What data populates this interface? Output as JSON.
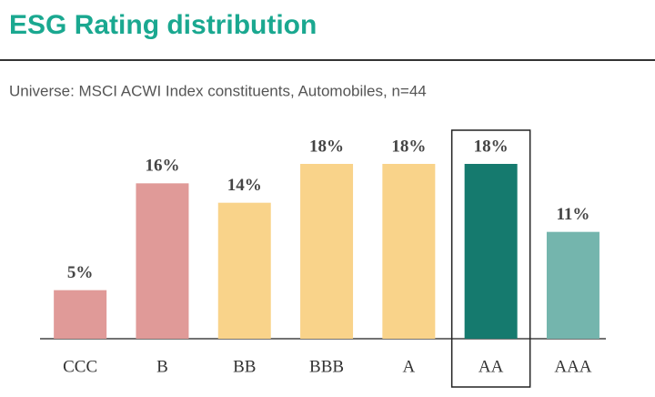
{
  "title": "ESG Rating distribution",
  "subtitle": "Universe: MSCI ACWI Index constituents, Automobiles, n=44",
  "chart_data": {
    "type": "bar",
    "categories": [
      "CCC",
      "B",
      "BB",
      "BBB",
      "A",
      "AA",
      "AAA"
    ],
    "values": [
      5,
      16,
      14,
      18,
      18,
      18,
      11
    ],
    "value_labels": [
      "5%",
      "16%",
      "14%",
      "18%",
      "18%",
      "18%",
      "11%"
    ],
    "colors": [
      "#e09a98",
      "#e09a98",
      "#f9d38a",
      "#f9d38a",
      "#f9d38a",
      "#157a6e",
      "#74b5ad"
    ],
    "highlight": "AA"
  }
}
